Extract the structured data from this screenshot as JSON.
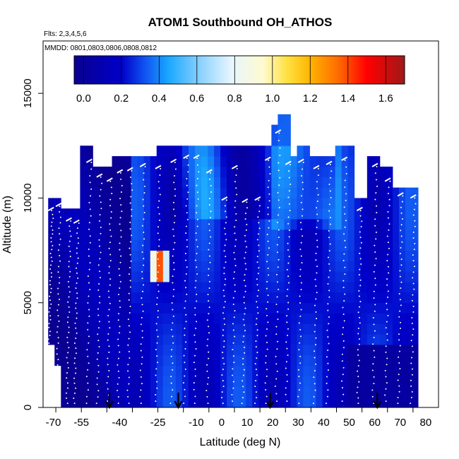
{
  "chart_data": {
    "type": "heatmap",
    "title": "ATOM1 Southbound OH_ATHOS",
    "flights_note": "Flts: 2,3,4,5,6",
    "dates_note": "MMDD: 0801,0803,0806,0808,0812",
    "xlabel": "Latitude (deg N)",
    "ylabel": "Altitude (m)",
    "xlim": [
      -70,
      85
    ],
    "ylim": [
      0,
      17500
    ],
    "x_tick_labels": [
      "-70",
      "-55",
      "-40",
      "-25",
      "-10",
      "0",
      "10",
      "20",
      "30",
      "40",
      "50",
      "60",
      "70",
      "80"
    ],
    "x_tick_values": [
      -65,
      -55,
      -45,
      -35,
      -25,
      -15,
      -5,
      5,
      15,
      25,
      35,
      45,
      55,
      65,
      75
    ],
    "y_ticks": [
      0,
      5000,
      10000,
      15000
    ],
    "colorbar": {
      "min": -0.05,
      "max": 1.7,
      "tick_values": [
        0.0,
        0.2,
        0.4,
        0.6,
        0.8,
        1.0,
        1.2,
        1.4,
        1.6
      ],
      "tick_labels": [
        "0.0",
        "0.2",
        "0.4",
        "0.6",
        "0.8",
        "1.0",
        "1.2",
        "1.4",
        "1.6"
      ],
      "stops": [
        {
          "v": -0.05,
          "c": "#0a0090"
        },
        {
          "v": 0.2,
          "c": "#0000c8"
        },
        {
          "v": 0.32,
          "c": "#1050f0"
        },
        {
          "v": 0.45,
          "c": "#1aa8ff"
        },
        {
          "v": 0.62,
          "c": "#8cd2ff"
        },
        {
          "v": 0.78,
          "c": "#e6f5ff"
        },
        {
          "v": 0.95,
          "c": "#fffad0"
        },
        {
          "v": 1.08,
          "c": "#ffe040"
        },
        {
          "v": 1.2,
          "c": "#ffb400"
        },
        {
          "v": 1.35,
          "c": "#ff6a00"
        },
        {
          "v": 1.5,
          "c": "#ff0000"
        },
        {
          "v": 1.7,
          "c": "#a01818"
        }
      ]
    },
    "profile_latitudes": [
      -67,
      -64,
      -60,
      -57,
      -52,
      -48,
      -44,
      -40,
      -36,
      -31,
      -25,
      -19,
      -14,
      -10,
      -5,
      1,
      5,
      9,
      14,
      18,
      22,
      26,
      31,
      37,
      42,
      48,
      54,
      60,
      65,
      70,
      75
    ],
    "profile_top_altitudes": [
      9400,
      9600,
      8900,
      8800,
      11700,
      11000,
      10800,
      11200,
      11300,
      11500,
      11400,
      11700,
      11900,
      11900,
      11200,
      9900,
      11400,
      9800,
      9900,
      11800,
      13100,
      11600,
      11700,
      11400,
      11600,
      11800,
      9400,
      11500,
      10800,
      10100,
      10000
    ],
    "profile_bottom_altitudes": [
      2700,
      200,
      200,
      200,
      200,
      200,
      300,
      200,
      200,
      200,
      300,
      200,
      200,
      200,
      200,
      200,
      300,
      200,
      200,
      200,
      300,
      300,
      200,
      200,
      200,
      300,
      200,
      200,
      300,
      200,
      200
    ],
    "high_oh_region": {
      "lat_min": -28,
      "lat_max": -21,
      "alt_min": 6200,
      "alt_max": 7500,
      "peak_value": 1.45
    },
    "arrow_latitudes": [
      -44,
      -17,
      19,
      61
    ]
  }
}
